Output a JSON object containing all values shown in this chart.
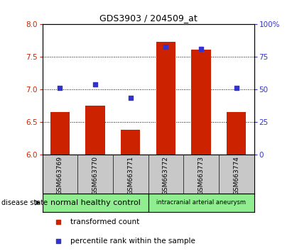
{
  "title": "GDS3903 / 204509_at",
  "samples": [
    "GSM663769",
    "GSM663770",
    "GSM663771",
    "GSM663772",
    "GSM663773",
    "GSM663774"
  ],
  "bar_values": [
    6.65,
    6.75,
    6.38,
    7.72,
    7.61,
    6.65
  ],
  "bar_bottom": 6.0,
  "dot_values_left": [
    7.02,
    7.07,
    6.87,
    7.65,
    7.62,
    7.02
  ],
  "ylim_left": [
    6.0,
    8.0
  ],
  "ylim_right": [
    0,
    100
  ],
  "yticks_left": [
    6.0,
    6.5,
    7.0,
    7.5,
    8.0
  ],
  "yticks_right": [
    0,
    25,
    50,
    75,
    100
  ],
  "bar_color": "#cc2200",
  "dot_color": "#3333cc",
  "bg_xlabel": "#c8c8c8",
  "bg_group": "#90ee90",
  "group_labels": [
    "normal healthy control",
    "intracranial arterial aneurysm"
  ],
  "disease_state_label": "disease state",
  "legend_bar_label": "transformed count",
  "legend_dot_label": "percentile rank within the sample",
  "bar_width": 0.55,
  "title_fontsize": 9,
  "tick_fontsize": 7.5,
  "sample_fontsize": 6.5,
  "group_fontsize1": 8,
  "group_fontsize2": 6,
  "legend_fontsize": 7.5
}
